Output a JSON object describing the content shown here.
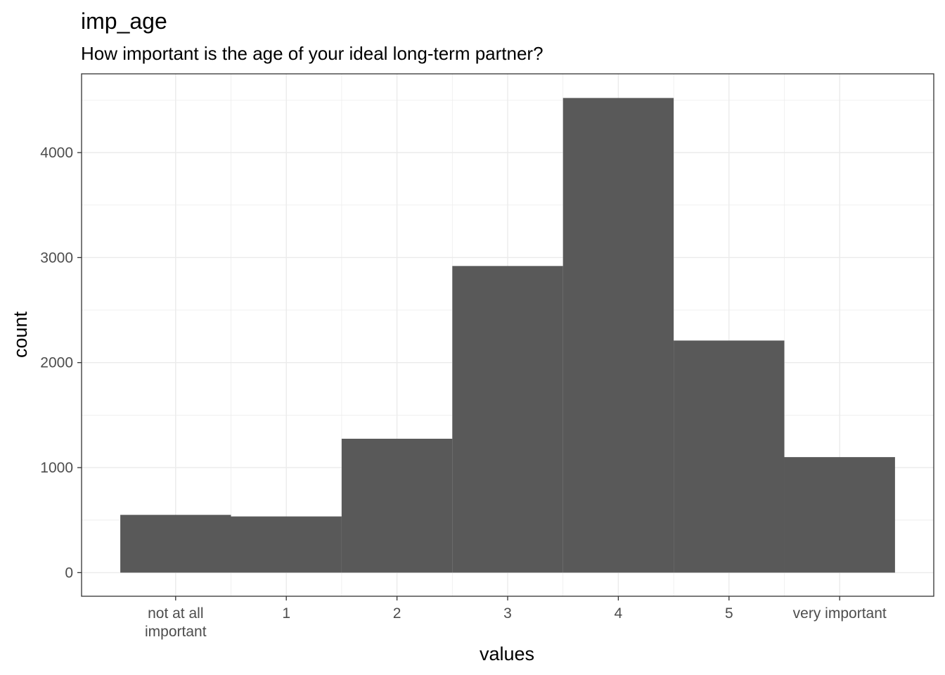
{
  "chart_data": {
    "type": "bar",
    "title": "imp_age",
    "subtitle": "How important is the age of your ideal long-term partner?",
    "xlabel": "values",
    "ylabel": "count",
    "categories": [
      "not at all important",
      "1",
      "2",
      "3",
      "4",
      "5",
      "very important"
    ],
    "category_tick_lines": [
      [
        "not at all",
        "important"
      ],
      [
        "1"
      ],
      [
        "2"
      ],
      [
        "3"
      ],
      [
        "4"
      ],
      [
        "5"
      ],
      [
        "very important"
      ]
    ],
    "values": [
      550,
      535,
      1275,
      2920,
      4520,
      2210,
      1100
    ],
    "yticks": [
      0,
      1000,
      2000,
      3000,
      4000
    ],
    "ylim": [
      -225,
      4750
    ],
    "grid": true,
    "legend": "none",
    "colors": {
      "bar": "#595959",
      "grid": "#ebebeb",
      "panel_border": "#333333",
      "tick_text": "#4d4d4d"
    }
  }
}
